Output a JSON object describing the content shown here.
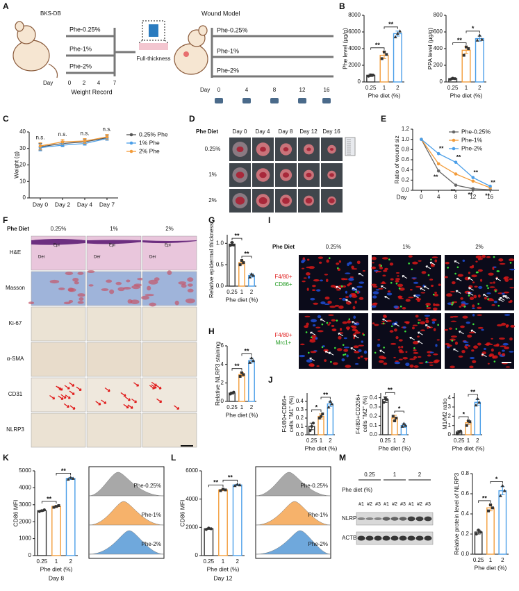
{
  "panels": [
    "A",
    "B",
    "C",
    "D",
    "E",
    "F",
    "G",
    "H",
    "I",
    "J",
    "K",
    "L",
    "M"
  ],
  "schematic": {
    "mouse_label": "BKS-DB",
    "diets": [
      "Phe-0.25%",
      "Phe-1%",
      "Phe-2%"
    ],
    "day_label": "Day",
    "weight_days": [
      "0",
      "2",
      "4",
      "7"
    ],
    "weight_record": "Weight Record",
    "wound_label": "Full-thickness",
    "wound_model": "Wound Model",
    "wound_diets": [
      "Phe-0.25%",
      "Phe-1%",
      "Phe-2%"
    ],
    "wound_days": [
      "0",
      "4",
      "8",
      "12",
      "16"
    ]
  },
  "wound_images": {
    "header": "Phe Diet",
    "columns": [
      "Day 0",
      "Day 4",
      "Day 8",
      "Day 12",
      "Day 16"
    ],
    "rows": [
      "0.25%",
      "1%",
      "2%"
    ]
  },
  "histology": {
    "header": "Phe Diet",
    "columns": [
      "0.25%",
      "1%",
      "2%"
    ],
    "rows": [
      "H&E",
      "Masson",
      "Ki-67",
      "α-SMA",
      "CD31",
      "NLRP3"
    ],
    "layer_labels": [
      "Epi",
      "Der"
    ]
  },
  "immunofluorescence": {
    "header": "Phe Diet",
    "columns": [
      "0.25%",
      "1%",
      "2%"
    ],
    "rows": [
      [
        "F4/80+",
        "CD86+"
      ],
      [
        "F4/80+",
        "Mrc1+"
      ]
    ]
  },
  "histograms": [
    {
      "legend": [
        "Phe-0.25%",
        "Phe-1%",
        "Phe-2%"
      ]
    },
    {
      "legend": [
        "Phe-0.25%",
        "Phe-1%",
        "Phe-2%"
      ]
    }
  ],
  "western_blot": {
    "label": "Phe diet (%)",
    "groups": [
      "0.25",
      "1",
      "2"
    ],
    "lanes": [
      "#1",
      "#2",
      "#3"
    ],
    "proteins": [
      "NLRP3",
      "ACTB"
    ]
  },
  "chart_data": [
    {
      "type": "bar",
      "ylabel": "Phe level (μg/g)",
      "xlabel": "Phe diet (%)",
      "categories": [
        "0.25",
        "1",
        "2"
      ],
      "values": [
        800,
        3200,
        5800
      ],
      "errors": [
        150,
        400,
        300
      ],
      "points": [
        [
          700,
          850,
          820
        ],
        [
          2800,
          3600,
          3300
        ],
        [
          5400,
          5800,
          6100
        ]
      ],
      "colors": [
        "#333333",
        "#f39c3a",
        "#4a9ee8"
      ],
      "markers": [
        "circle",
        "square",
        "triangle"
      ],
      "ylim": [
        0,
        8000
      ],
      "yticks": [
        0,
        2000,
        4000,
        6000,
        8000
      ],
      "annotations": [
        {
          "label": "**",
          "between": [
            "0.25",
            "1"
          ]
        },
        {
          "label": "**",
          "between": [
            "1",
            "2"
          ]
        }
      ]
    },
    {
      "type": "bar",
      "ylabel": "PPA level (μg/g)",
      "xlabel": "Phe diet (%)",
      "categories": [
        "0.25",
        "1",
        "2"
      ],
      "values": [
        40,
        380,
        520
      ],
      "errors": [
        10,
        40,
        30
      ],
      "points": [
        [
          30,
          45,
          40
        ],
        [
          320,
          420,
          400
        ],
        [
          500,
          560,
          510
        ]
      ],
      "colors": [
        "#333333",
        "#f39c3a",
        "#4a9ee8"
      ],
      "markers": [
        "circle",
        "square",
        "triangle"
      ],
      "ylim": [
        0,
        800
      ],
      "yticks": [
        0,
        200,
        400,
        600,
        800
      ],
      "annotations": [
        {
          "label": "**",
          "between": [
            "0.25",
            "1"
          ]
        },
        {
          "label": "*",
          "between": [
            "1",
            "2"
          ]
        }
      ]
    },
    {
      "type": "line",
      "ylabel": "Weight (g)",
      "categories": [
        "Day 0",
        "Day 2",
        "Day 4",
        "Day 7"
      ],
      "series": [
        {
          "name": "0.25% Phe",
          "color": "#555555",
          "values": [
            31,
            33,
            34,
            36.5
          ],
          "errors": [
            2,
            1.5,
            1.5,
            1.5
          ]
        },
        {
          "name": "1% Phe",
          "color": "#4a9ee8",
          "values": [
            30.5,
            32,
            33,
            36
          ],
          "errors": [
            2,
            1,
            1,
            1
          ]
        },
        {
          "name": "2% Phe",
          "color": "#f39c3a",
          "values": [
            31.5,
            34,
            34.5,
            37
          ],
          "errors": [
            2,
            1.5,
            1.5,
            1.5
          ]
        }
      ],
      "ylim": [
        0,
        40
      ],
      "yticks": [
        0,
        10,
        20,
        30,
        40
      ],
      "legend": "right",
      "annotations": [
        {
          "label": "n.s.",
          "category": "Day 0"
        },
        {
          "label": "n.s.",
          "category": "Day 2"
        },
        {
          "label": "n.s.",
          "category": "Day 4"
        },
        {
          "label": "n.s.",
          "category": "Day 7"
        }
      ]
    },
    {
      "type": "line",
      "ylabel": "Ratio of wound siz",
      "xlabel": "Day",
      "x": [
        0,
        4,
        8,
        12,
        16
      ],
      "series": [
        {
          "name": "Phe-0.25%",
          "color": "#666666",
          "values": [
            1,
            0.38,
            0.1,
            0.03,
            0.01
          ]
        },
        {
          "name": "Phe-1%",
          "color": "#f39c3a",
          "values": [
            1,
            0.52,
            0.32,
            0.18,
            0.05
          ]
        },
        {
          "name": "Phe-2%",
          "color": "#4a9ee8",
          "values": [
            1,
            0.72,
            0.55,
            0.25,
            0.08
          ]
        }
      ],
      "xlim": [
        -2,
        18
      ],
      "xticks": [
        0,
        4,
        8,
        12,
        16
      ],
      "ylim": [
        0,
        1.2
      ],
      "yticks": [
        {
          "value": 0,
          "label": "0.0"
        },
        0.2,
        0.4,
        0.6,
        0.8,
        {
          "value": 1,
          "label": "1.0"
        },
        1.2
      ],
      "legend": "upper right",
      "annotations": [
        {
          "label": "**",
          "x": 4,
          "series": "Phe-2%"
        },
        {
          "label": "**",
          "x": 4,
          "series": "Phe-0.25%"
        },
        {
          "label": "**",
          "x": 8,
          "series": "Phe-2%"
        },
        {
          "label": "**",
          "x": 8,
          "series": "Phe-0.25%"
        },
        {
          "label": "**",
          "x": 12,
          "series": "Phe-2%"
        },
        {
          "label": "**",
          "x": 12,
          "series": "Phe-0.25%"
        },
        {
          "label": "**",
          "x": 16,
          "series": "Phe-1%"
        },
        {
          "label": "**",
          "x": 16,
          "series": "Phe-0.25%"
        }
      ]
    },
    {
      "type": "bar",
      "ylabel": "Relative epidermal thickness",
      "xlabel": "Phe diet (%)",
      "categories": [
        "0.25",
        "1",
        "2"
      ],
      "values": [
        0.98,
        0.55,
        0.25
      ],
      "errors": [
        0.04,
        0.05,
        0.04
      ],
      "points": [
        [
          0.95,
          1.02,
          0.96
        ],
        [
          0.5,
          0.6,
          0.55
        ],
        [
          0.21,
          0.28,
          0.25
        ]
      ],
      "colors": [
        "#333333",
        "#f39c3a",
        "#4a9ee8"
      ],
      "markers": [
        "circle",
        "square",
        "triangle"
      ],
      "ylim": [
        0,
        1.2
      ],
      "yticks": [
        {
          "value": 0,
          "label": "0.0"
        },
        0.5,
        {
          "value": 1,
          "label": "1.0"
        }
      ],
      "annotations": [
        {
          "label": "**",
          "between": [
            "0.25",
            "1"
          ]
        },
        {
          "label": "**",
          "between": [
            "1",
            "2"
          ]
        }
      ]
    },
    {
      "type": "bar",
      "ylabel": "Relative NLRP3 staining",
      "xlabel": "Phe diet (%)",
      "categories": [
        "0.25",
        "1",
        "2"
      ],
      "values": [
        0.9,
        2.9,
        4.4
      ],
      "errors": [
        0.1,
        0.2,
        0.25
      ],
      "points": [
        [
          0.8,
          0.9,
          1.0
        ],
        [
          2.7,
          3.1,
          2.9
        ],
        [
          4.2,
          4.7,
          4.4
        ]
      ],
      "colors": [
        "#333333",
        "#f39c3a",
        "#4a9ee8"
      ],
      "markers": [
        "circle",
        "square",
        "triangle"
      ],
      "ylim": [
        0,
        6
      ],
      "yticks": [
        0,
        2,
        4,
        6
      ],
      "annotations": [
        {
          "label": "**",
          "between": [
            "0.25",
            "1"
          ]
        },
        {
          "label": "**",
          "between": [
            "1",
            "2"
          ]
        }
      ]
    },
    {
      "type": "bar",
      "ylabel": [
        "F4/80+CD86+",
        "cells \"M1\" (%)"
      ],
      "xlabel": "Phe diet (%)",
      "categories": [
        "0.25",
        "1",
        "2"
      ],
      "values": [
        0.1,
        0.22,
        0.37
      ],
      "errors": [
        0.04,
        0.03,
        0.03
      ],
      "points": [
        [
          0.05,
          0.1,
          0.14
        ],
        [
          0.2,
          0.22,
          0.25
        ],
        [
          0.33,
          0.4,
          0.37
        ]
      ],
      "colors": [
        "#333333",
        "#f39c3a",
        "#4a9ee8"
      ],
      "markers": [
        "circle",
        "square",
        "triangle"
      ],
      "ylim": [
        0,
        0.5
      ],
      "yticks": [
        {
          "value": 0,
          "label": "0.0"
        },
        0.1,
        0.2,
        0.3,
        0.4
      ],
      "annotations": [
        {
          "label": "*",
          "between": [
            "0.25",
            "1"
          ]
        },
        {
          "label": "**",
          "between": [
            "1",
            "2"
          ]
        }
      ]
    },
    {
      "type": "bar",
      "ylabel": [
        "F4/80+CD206+",
        "cells \"M2\" (%)"
      ],
      "xlabel": "Phe diet (%)",
      "categories": [
        "0.25",
        "1",
        "2"
      ],
      "values": [
        0.38,
        0.18,
        0.1
      ],
      "errors": [
        0.03,
        0.03,
        0.02
      ],
      "points": [
        [
          0.35,
          0.4,
          0.38
        ],
        [
          0.2,
          0.15,
          0.18
        ],
        [
          0.09,
          0.12,
          0.1
        ]
      ],
      "colors": [
        "#333333",
        "#f39c3a",
        "#4a9ee8"
      ],
      "markers": [
        "circle",
        "square",
        "triangle"
      ],
      "ylim": [
        0,
        0.45
      ],
      "yticks": [
        {
          "value": 0,
          "label": "0.0"
        },
        0.1,
        0.2,
        0.3,
        0.4
      ],
      "annotations": [
        {
          "label": "**",
          "between": [
            "0.25",
            "1"
          ]
        },
        {
          "label": "*",
          "between": [
            "1",
            "2"
          ]
        }
      ]
    },
    {
      "type": "bar",
      "ylabel": "M1/M2 ratio",
      "xlabel": "Phe diet (%)",
      "categories": [
        "0.25",
        "1",
        "2"
      ],
      "values": [
        0.3,
        1.3,
        3.5
      ],
      "errors": [
        0.15,
        0.2,
        0.3
      ],
      "points": [
        [
          0.1,
          0.3,
          0.4
        ],
        [
          1.0,
          1.5,
          1.4
        ],
        [
          3.2,
          3.9,
          3.5
        ]
      ],
      "colors": [
        "#333333",
        "#f39c3a",
        "#4a9ee8"
      ],
      "markers": [
        "circle",
        "square",
        "triangle"
      ],
      "ylim": [
        0,
        4.5
      ],
      "yticks": [
        0,
        1,
        2,
        3,
        4
      ],
      "annotations": [
        {
          "label": "*",
          "between": [
            "0.25",
            "1"
          ]
        },
        {
          "label": "**",
          "between": [
            "1",
            "2"
          ]
        }
      ]
    },
    {
      "type": "bar",
      "ylabel": "CD86 MFI",
      "xlabel": "Phe diet (%)",
      "title": "Day 8",
      "categories": [
        "0.25",
        "1",
        "2"
      ],
      "values": [
        2650,
        2900,
        4550
      ],
      "errors": [
        40,
        50,
        60
      ],
      "points": [
        [
          2600,
          2650,
          2700
        ],
        [
          2850,
          2900,
          2950
        ],
        [
          4500,
          4600,
          4550
        ]
      ],
      "colors": [
        "#333333",
        "#f39c3a",
        "#4a9ee8"
      ],
      "markers": [
        "circle",
        "square",
        "triangle"
      ],
      "ylim": [
        0,
        5000
      ],
      "yticks": [
        0,
        1000,
        2000,
        3000,
        4000,
        5000
      ],
      "annotations": [
        {
          "label": "**",
          "between": [
            "0.25",
            "1"
          ]
        },
        {
          "label": "**",
          "between": [
            "1",
            "2"
          ]
        }
      ]
    },
    {
      "type": "bar",
      "ylabel": "CD86 MFI",
      "xlabel": "Phe diet (%)",
      "title": "Day 12",
      "categories": [
        "0.25",
        "1",
        "2"
      ],
      "values": [
        1900,
        4650,
        5000
      ],
      "errors": [
        50,
        60,
        50
      ],
      "points": [
        [
          1850,
          1950,
          1900
        ],
        [
          4600,
          4700,
          4650
        ],
        [
          4950,
          5050,
          5000
        ]
      ],
      "colors": [
        "#333333",
        "#f39c3a",
        "#4a9ee8"
      ],
      "markers": [
        "circle",
        "square",
        "triangle"
      ],
      "ylim": [
        0,
        6000
      ],
      "yticks": [
        0,
        2000,
        4000,
        6000
      ],
      "annotations": [
        {
          "label": "**",
          "between": [
            "0.25",
            "1"
          ]
        },
        {
          "label": "**",
          "between": [
            "1",
            "2"
          ]
        }
      ]
    },
    {
      "type": "bar",
      "ylabel": "Relative protein level of NLRP3",
      "xlabel": "Phe diet (%)",
      "categories": [
        "0.25",
        "1",
        "2"
      ],
      "values": [
        0.22,
        0.46,
        0.63
      ],
      "errors": [
        0.02,
        0.03,
        0.04
      ],
      "points": [
        [
          0.2,
          0.24,
          0.22
        ],
        [
          0.43,
          0.49,
          0.46
        ],
        [
          0.58,
          0.68,
          0.63
        ]
      ],
      "colors": [
        "#333333",
        "#f39c3a",
        "#4a9ee8"
      ],
      "markers": [
        "circle",
        "square",
        "triangle"
      ],
      "ylim": [
        0,
        0.8
      ],
      "yticks": [
        {
          "value": 0,
          "label": "0.0"
        },
        0.2,
        0.4,
        0.6,
        0.8
      ],
      "annotations": [
        {
          "label": "**",
          "between": [
            "0.25",
            "1"
          ]
        },
        {
          "label": "*",
          "between": [
            "1",
            "2"
          ]
        }
      ]
    }
  ]
}
